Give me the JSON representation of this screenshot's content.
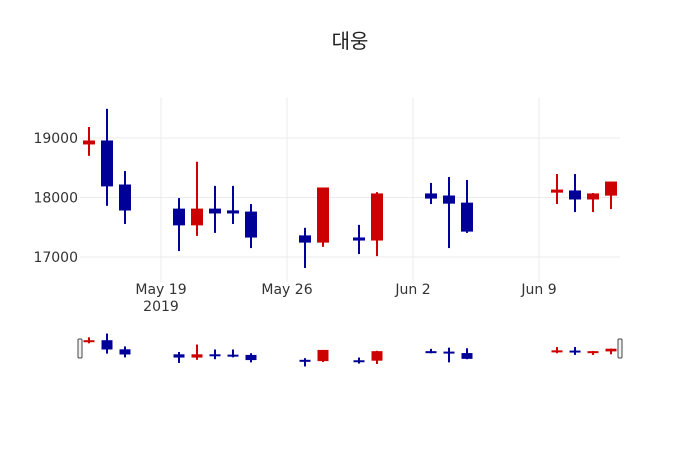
{
  "chart_data": {
    "type": "candlestick",
    "title": "대웅",
    "xlabel": "",
    "ylabel": "",
    "ylim": [
      16690,
      19700
    ],
    "y_ticks": [
      17000,
      18000,
      19000
    ],
    "x_tick_labels": [
      {
        "date": "2019-05-19",
        "label": "May 19",
        "sublabel": "2019"
      },
      {
        "date": "2019-05-26",
        "label": "May 26",
        "sublabel": ""
      },
      {
        "date": "2019-06-02",
        "label": "Jun 2",
        "sublabel": ""
      },
      {
        "date": "2019-06-09",
        "label": "Jun 9",
        "sublabel": ""
      }
    ],
    "grid": true,
    "rangeslider": true,
    "increasing_color": "#cc0000",
    "decreasing_color": "#000099",
    "series": [
      {
        "date": "2019-05-15",
        "open": 18900,
        "high": 19185,
        "low": 18700,
        "close": 18950
      },
      {
        "date": "2019-05-16",
        "open": 18950,
        "high": 19490,
        "low": 17860,
        "close": 18195
      },
      {
        "date": "2019-05-17",
        "open": 18210,
        "high": 18445,
        "low": 17555,
        "close": 17790
      },
      {
        "date": "2019-05-20",
        "open": 17805,
        "high": 17990,
        "low": 17100,
        "close": 17540
      },
      {
        "date": "2019-05-21",
        "open": 17540,
        "high": 18600,
        "low": 17355,
        "close": 17805
      },
      {
        "date": "2019-05-22",
        "open": 17805,
        "high": 18195,
        "low": 17405,
        "close": 17740
      },
      {
        "date": "2019-05-23",
        "open": 17775,
        "high": 18195,
        "low": 17555,
        "close": 17740
      },
      {
        "date": "2019-05-24",
        "open": 17755,
        "high": 17890,
        "low": 17150,
        "close": 17335
      },
      {
        "date": "2019-05-27",
        "open": 17355,
        "high": 17490,
        "low": 16815,
        "close": 17250
      },
      {
        "date": "2019-05-28",
        "open": 17250,
        "high": 18160,
        "low": 17170,
        "close": 18160
      },
      {
        "date": "2019-05-30",
        "open": 17320,
        "high": 17540,
        "low": 17050,
        "close": 17285
      },
      {
        "date": "2019-05-31",
        "open": 17285,
        "high": 18090,
        "low": 17015,
        "close": 18060
      },
      {
        "date": "2019-06-03",
        "open": 18060,
        "high": 18245,
        "low": 17890,
        "close": 17990
      },
      {
        "date": "2019-06-04",
        "open": 18025,
        "high": 18345,
        "low": 17150,
        "close": 17905
      },
      {
        "date": "2019-06-05",
        "open": 17905,
        "high": 18295,
        "low": 17405,
        "close": 17435
      },
      {
        "date": "2019-06-10",
        "open": 18090,
        "high": 18395,
        "low": 17890,
        "close": 18125
      },
      {
        "date": "2019-06-11",
        "open": 18110,
        "high": 18395,
        "low": 17755,
        "close": 17975
      },
      {
        "date": "2019-06-12",
        "open": 17975,
        "high": 18075,
        "low": 17755,
        "close": 18060
      },
      {
        "date": "2019-06-13",
        "open": 18040,
        "high": 18260,
        "low": 17805,
        "close": 18260
      }
    ]
  }
}
